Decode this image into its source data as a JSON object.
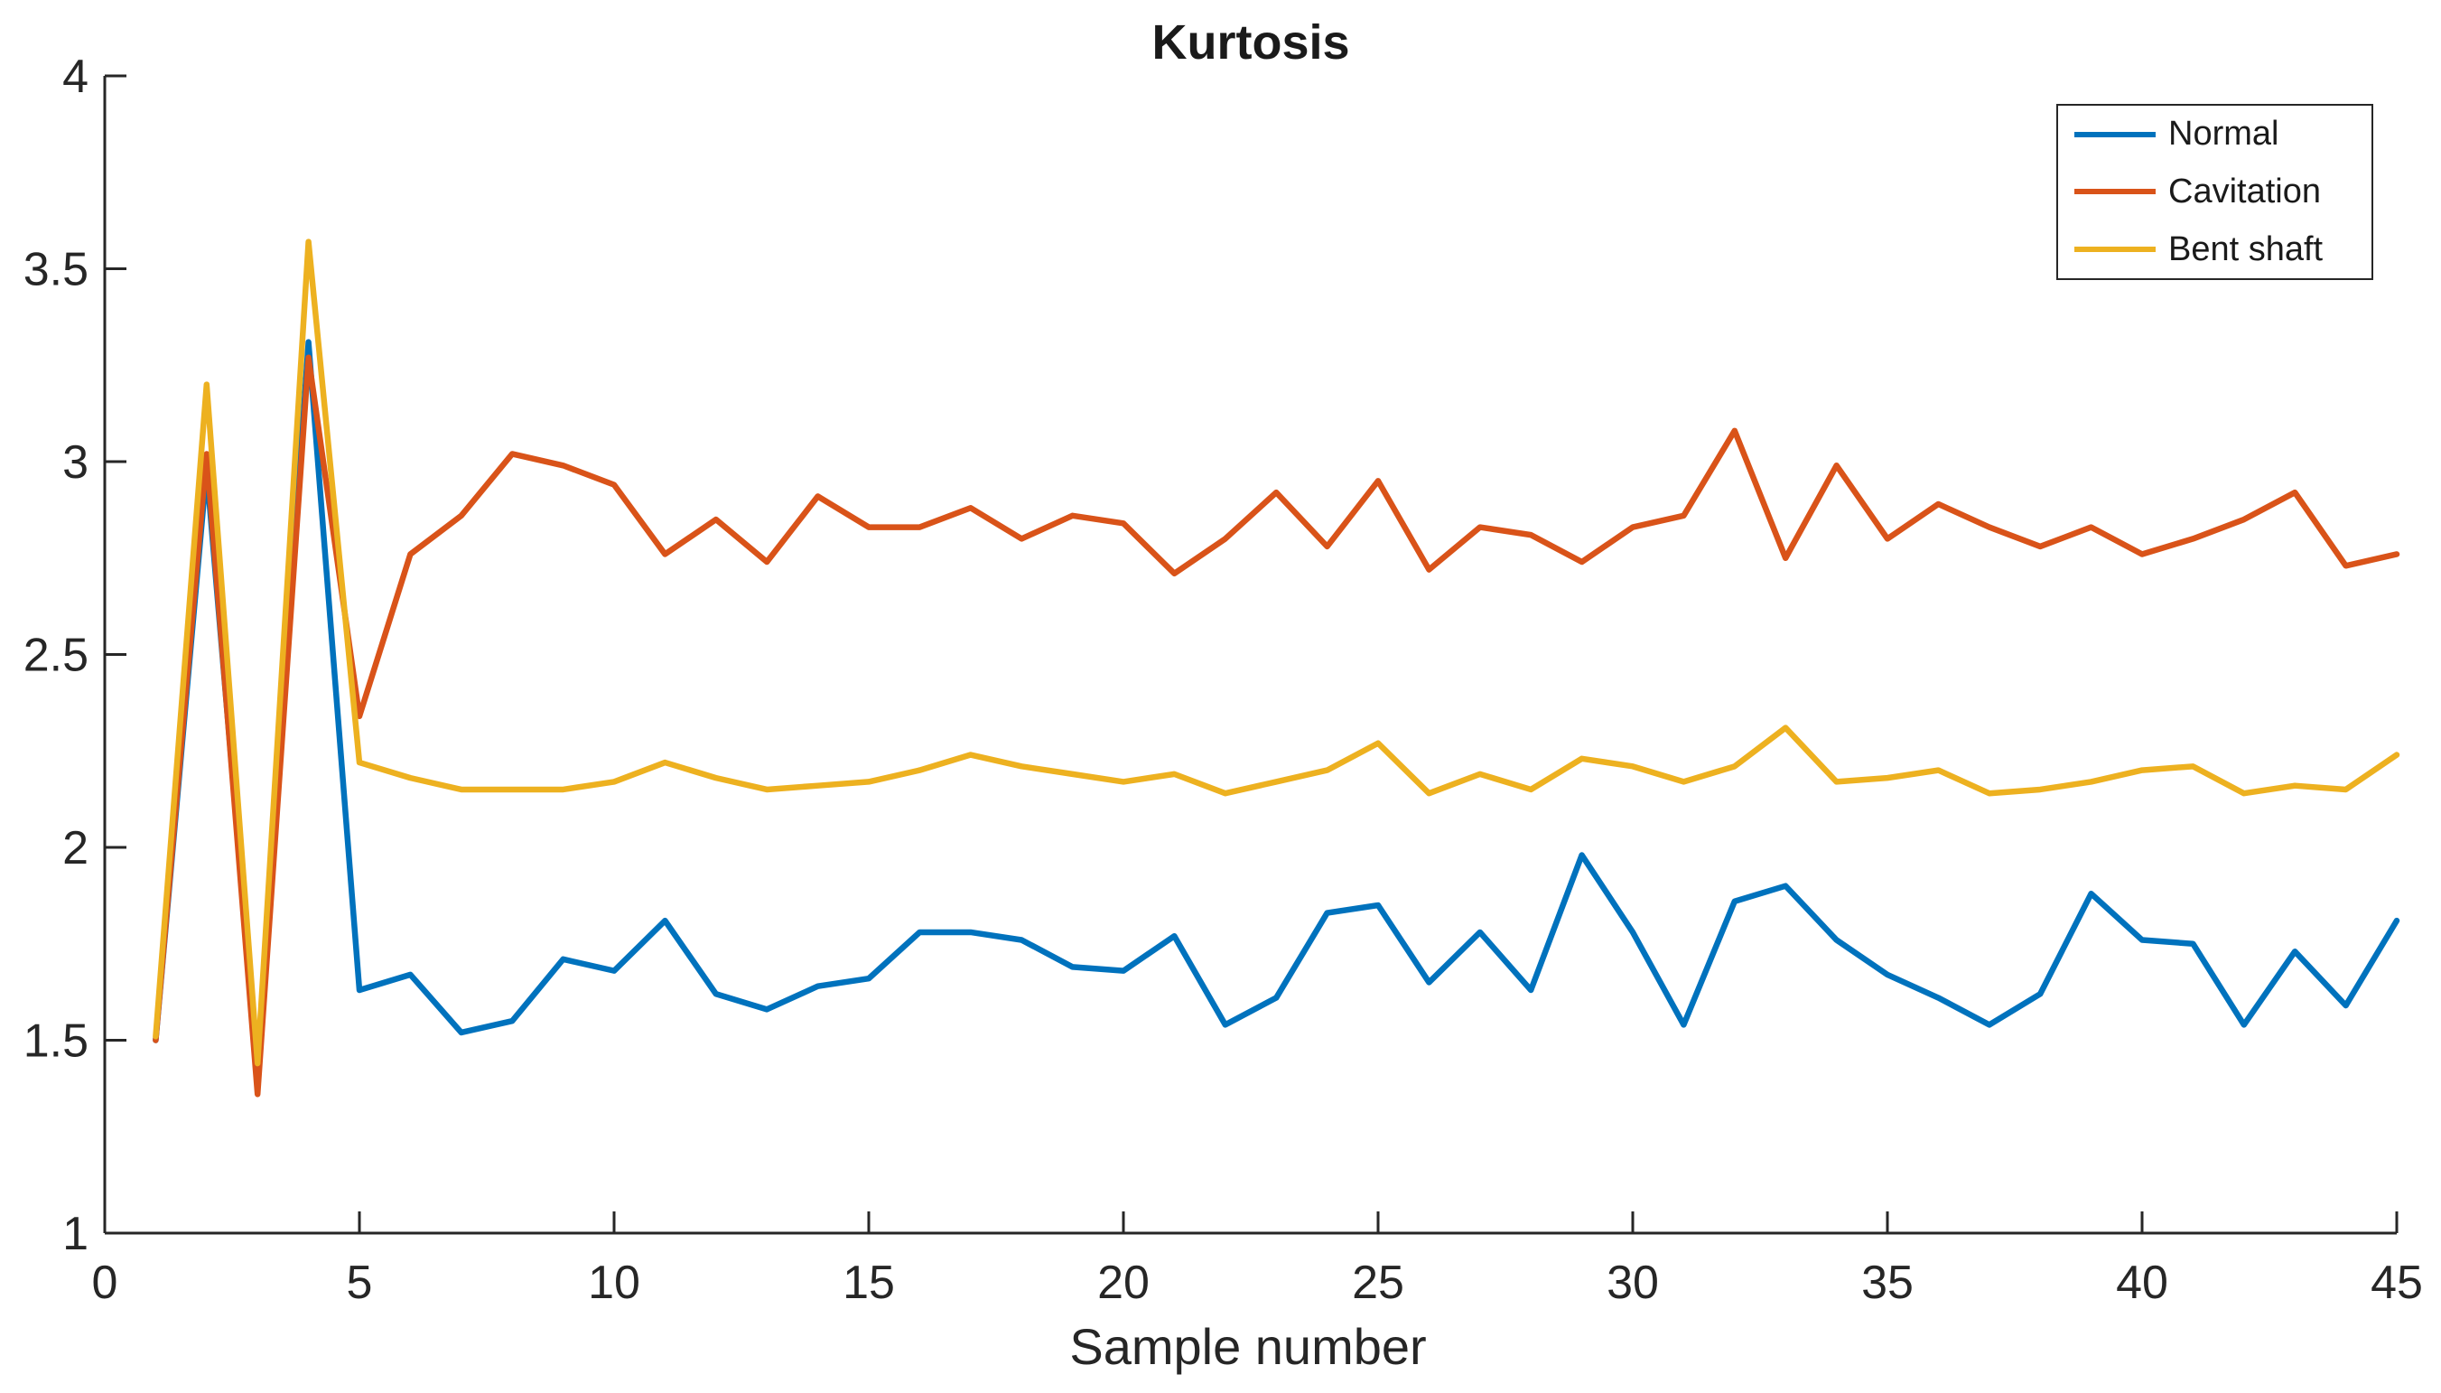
{
  "figure": {
    "title": "Kurtosis",
    "x_axis_label": "Sample number"
  },
  "legend": {
    "entries": [
      "Normal",
      "Cavitation",
      "Bent shaft"
    ]
  },
  "chart_data": {
    "type": "line",
    "title": "Kurtosis",
    "xlabel": "Sample number",
    "ylabel": "",
    "xlim": [
      0,
      45
    ],
    "ylim": [
      1,
      4
    ],
    "x_ticks": [
      0,
      5,
      10,
      15,
      20,
      25,
      30,
      35,
      40,
      45
    ],
    "x_tick_labels": [
      "0",
      "5",
      "10",
      "15",
      "20",
      "25",
      "30",
      "35",
      "40",
      "45"
    ],
    "y_ticks": [
      1,
      1.5,
      2,
      2.5,
      3,
      3.5,
      4
    ],
    "y_tick_labels": [
      "1",
      "1.5",
      "2",
      "2.5",
      "3",
      "3.5",
      "4"
    ],
    "grid": false,
    "legend_position": "top-right",
    "axis_color": "#262626",
    "line_width": 6.5,
    "x": [
      1,
      2,
      3,
      4,
      5,
      6,
      7,
      8,
      9,
      10,
      11,
      12,
      13,
      14,
      15,
      16,
      17,
      18,
      19,
      20,
      21,
      22,
      23,
      24,
      25,
      26,
      27,
      28,
      29,
      30,
      31,
      32,
      33,
      34,
      35,
      36,
      37,
      38,
      39,
      40,
      41,
      42,
      43,
      44,
      45
    ],
    "series": [
      {
        "name": "Normal",
        "color": "#0072BD",
        "values": [
          1.5,
          2.98,
          1.42,
          3.31,
          1.63,
          1.67,
          1.52,
          1.55,
          1.71,
          1.68,
          1.81,
          1.62,
          1.58,
          1.64,
          1.66,
          1.78,
          1.78,
          1.76,
          1.69,
          1.68,
          1.77,
          1.54,
          1.61,
          1.83,
          1.85,
          1.65,
          1.78,
          1.63,
          1.98,
          1.78,
          1.54,
          1.86,
          1.9,
          1.76,
          1.67,
          1.61,
          1.54,
          1.62,
          1.88,
          1.76,
          1.75,
          1.54,
          1.73,
          1.59,
          1.81
        ]
      },
      {
        "name": "Cavitation",
        "color": "#D95319",
        "values": [
          1.5,
          3.02,
          1.36,
          3.27,
          2.34,
          2.76,
          2.86,
          3.02,
          2.99,
          2.94,
          2.76,
          2.85,
          2.74,
          2.91,
          2.83,
          2.83,
          2.88,
          2.8,
          2.86,
          2.84,
          2.71,
          2.8,
          2.92,
          2.78,
          2.95,
          2.72,
          2.83,
          2.81,
          2.74,
          2.83,
          2.86,
          3.08,
          2.75,
          2.99,
          2.8,
          2.89,
          2.83,
          2.78,
          2.83,
          2.76,
          2.8,
          2.85,
          2.92,
          2.73,
          2.76
        ]
      },
      {
        "name": "Bent shaft",
        "color": "#EDB120",
        "values": [
          1.51,
          3.2,
          1.44,
          3.57,
          2.22,
          2.18,
          2.15,
          2.15,
          2.15,
          2.17,
          2.22,
          2.18,
          2.15,
          2.16,
          2.17,
          2.2,
          2.24,
          2.21,
          2.19,
          2.17,
          2.19,
          2.14,
          2.17,
          2.2,
          2.27,
          2.14,
          2.19,
          2.15,
          2.23,
          2.21,
          2.17,
          2.21,
          2.31,
          2.17,
          2.18,
          2.2,
          2.14,
          2.15,
          2.17,
          2.2,
          2.21,
          2.14,
          2.16,
          2.15,
          2.24
        ]
      }
    ]
  }
}
